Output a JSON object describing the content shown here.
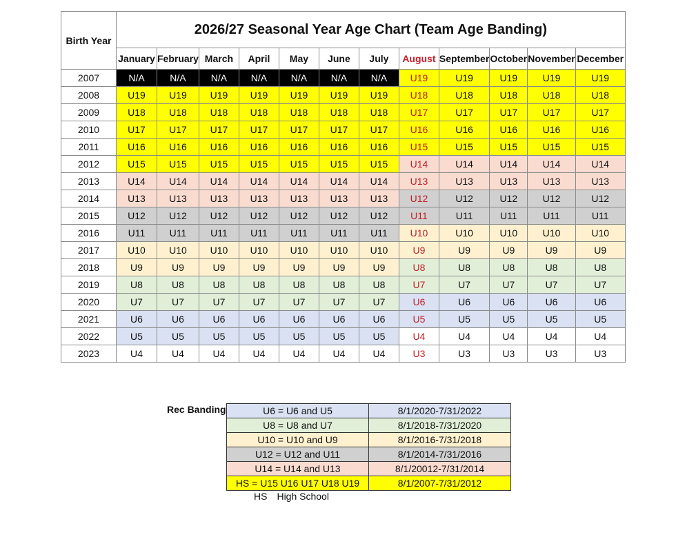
{
  "chart": {
    "title": "2026/27 Seasonal Year Age Chart (Team Age Banding)",
    "birth_year_header": "Birth Year",
    "months": [
      "January",
      "February",
      "March",
      "April",
      "May",
      "June",
      "July",
      "August",
      "September",
      "October",
      "November",
      "December"
    ],
    "rows": [
      {
        "year": "2007",
        "before": "N/A",
        "aug": "U19",
        "after": "U19"
      },
      {
        "year": "2008",
        "before": "U19",
        "aug": "U18",
        "after": "U18"
      },
      {
        "year": "2009",
        "before": "U18",
        "aug": "U17",
        "after": "U17"
      },
      {
        "year": "2010",
        "before": "U17",
        "aug": "U16",
        "after": "U16"
      },
      {
        "year": "2011",
        "before": "U16",
        "aug": "U15",
        "after": "U15"
      },
      {
        "year": "2012",
        "before": "U15",
        "aug": "U14",
        "after": "U14"
      },
      {
        "year": "2013",
        "before": "U14",
        "aug": "U13",
        "after": "U13"
      },
      {
        "year": "2014",
        "before": "U13",
        "aug": "U12",
        "after": "U12"
      },
      {
        "year": "2015",
        "before": "U12",
        "aug": "U11",
        "after": "U11"
      },
      {
        "year": "2016",
        "before": "U11",
        "aug": "U10",
        "after": "U10"
      },
      {
        "year": "2017",
        "before": "U10",
        "aug": "U9",
        "after": "U9"
      },
      {
        "year": "2018",
        "before": "U9",
        "aug": "U8",
        "after": "U8"
      },
      {
        "year": "2019",
        "before": "U8",
        "aug": "U7",
        "after": "U7"
      },
      {
        "year": "2020",
        "before": "U7",
        "aug": "U6",
        "after": "U6"
      },
      {
        "year": "2021",
        "before": "U6",
        "aug": "U5",
        "after": "U5"
      },
      {
        "year": "2022",
        "before": "U5",
        "aug": "U4",
        "after": "U4"
      },
      {
        "year": "2023",
        "before": "U4",
        "aug": "U3",
        "after": "U3"
      }
    ]
  },
  "rec_banding": {
    "title": "Rec Banding",
    "rows": [
      {
        "label": "U6 = U6 and U5",
        "dates": "8/1/2020-7/31/2022",
        "color": "#d9e1f2"
      },
      {
        "label": "U8 = U8 and U7",
        "dates": "8/1/2018-7/31/2020",
        "color": "#e1efd8"
      },
      {
        "label": "U10 = U10 and U9",
        "dates": "8/1/2016-7/31/2018",
        "color": "#fff1cf"
      },
      {
        "label": "U12 = U12 and U11",
        "dates": "8/1/2014-7/31/2016",
        "color": "#d0d0d0"
      },
      {
        "label": "U14 = U14 and U13",
        "dates": "8/1/20012-7/31/2014",
        "color": "#fadbd0"
      },
      {
        "label": "HS = U15 U16 U17 U18 U19",
        "dates": "8/1/2007-7/31/2012",
        "color": "#ffff00"
      }
    ]
  },
  "legend": {
    "abbr": "HS",
    "meaning": "High School"
  },
  "colors": {
    "na": "#000000",
    "hs": "#ffff00",
    "u14": "#fadbd0",
    "u12": "#d0d0d0",
    "u10": "#fff1cf",
    "u8": "#e1efd8",
    "u6": "#d9e1f2",
    "august_text": "#c0202a"
  }
}
